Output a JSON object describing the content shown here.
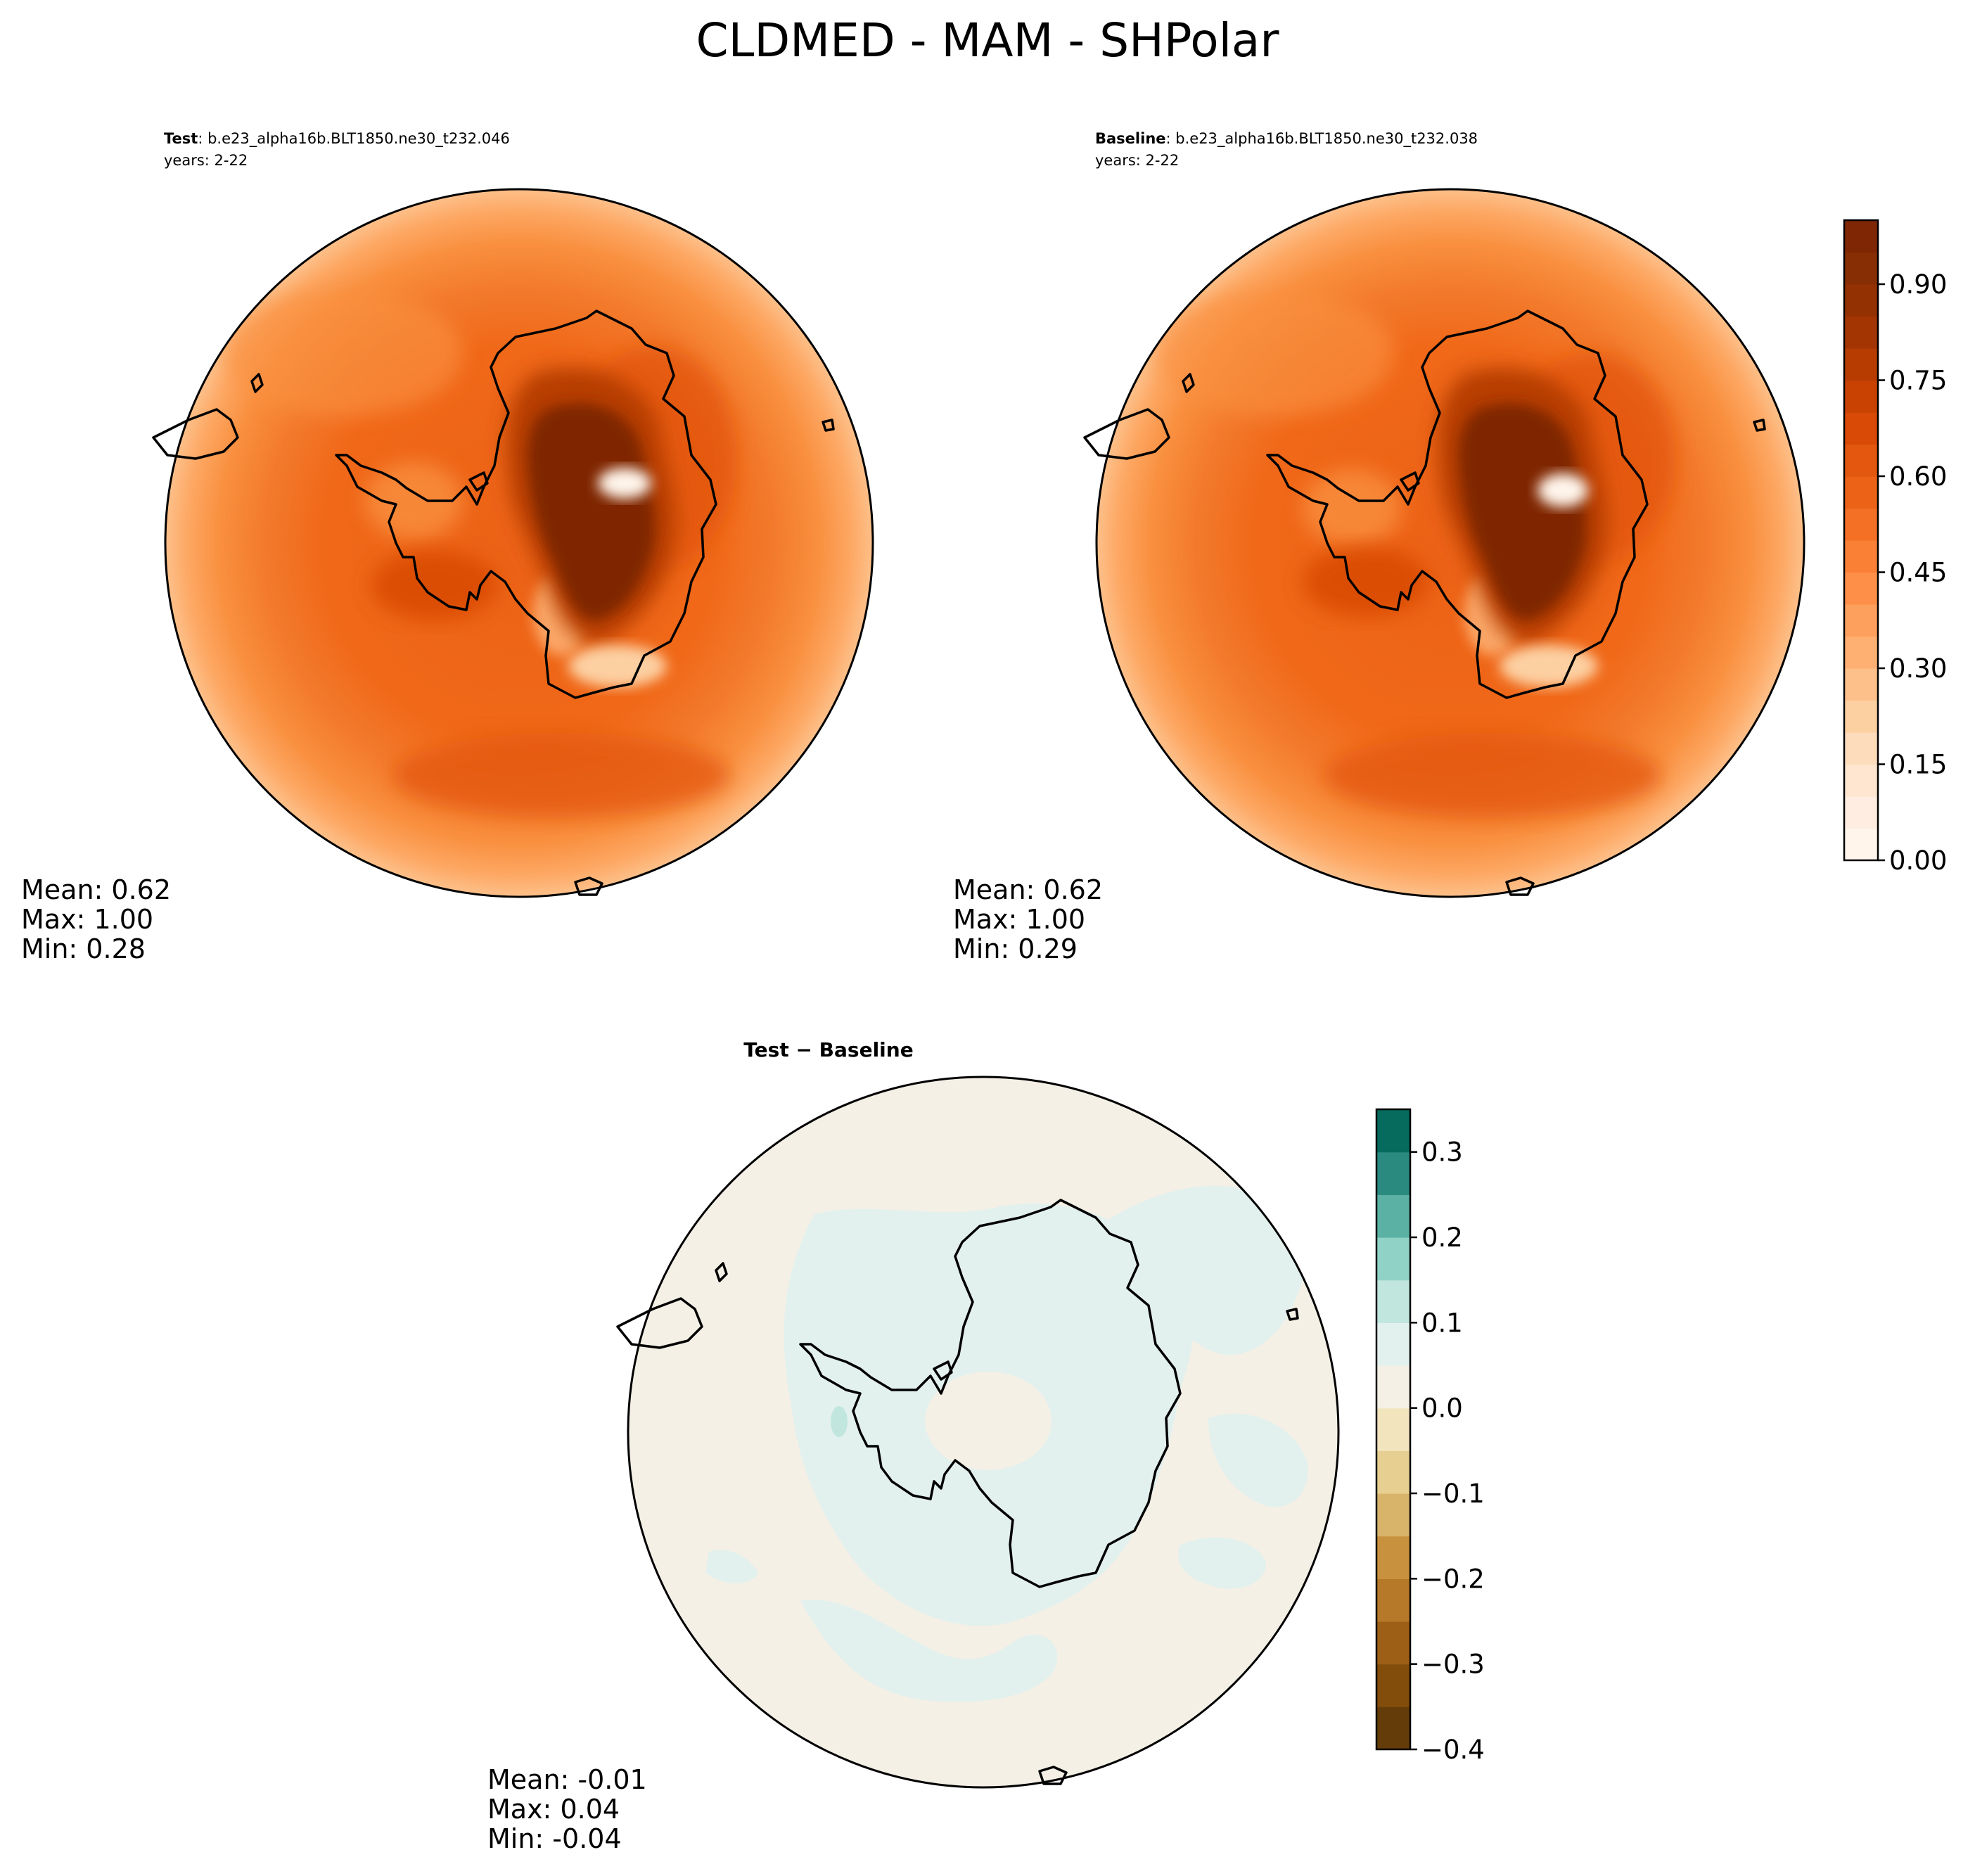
{
  "figure": {
    "title": "CLDMED - MAM - SHPolar"
  },
  "panels": {
    "test": {
      "label": "Test",
      "case": ": b.e23_alpha16b.BLT1850.ne30_t232.046",
      "years": "years: 2-22",
      "stats": {
        "mean": "Mean:  0.62",
        "max": "Max:  1.00",
        "min": "Min:  0.28"
      }
    },
    "baseline": {
      "label": "Baseline",
      "case": ": b.e23_alpha16b.BLT1850.ne30_t232.038",
      "years": "years: 2-22",
      "stats": {
        "mean": "Mean:  0.62",
        "max": "Max:  1.00",
        "min": "Min:  0.29"
      }
    },
    "diff": {
      "label": "Test − Baseline",
      "stats": {
        "mean": "Mean: -0.01",
        "max": "Max:  0.04",
        "min": "Min: -0.04"
      }
    }
  },
  "chart_data": [
    {
      "type": "heatmap",
      "panel": "test",
      "projection": "south-polar-stereographic",
      "summary": {
        "mean": 0.62,
        "max": 1.0,
        "min": 0.28
      },
      "colormap": "Oranges",
      "range": [
        0.0,
        1.0
      ]
    },
    {
      "type": "heatmap",
      "panel": "baseline",
      "projection": "south-polar-stereographic",
      "summary": {
        "mean": 0.62,
        "max": 1.0,
        "min": 0.29
      },
      "colormap": "Oranges",
      "range": [
        0.0,
        1.0
      ],
      "colorbar": {
        "ticks": [
          "0.00",
          "0.15",
          "0.30",
          "0.45",
          "0.60",
          "0.75",
          "0.90"
        ],
        "tick_values": [
          0.0,
          0.15,
          0.3,
          0.45,
          0.6,
          0.75,
          0.9
        ],
        "levels": 20,
        "colors": [
          "#fff5eb",
          "#feede0",
          "#fee6d0",
          "#fddcbc",
          "#fdd0a2",
          "#fdc08a",
          "#fdb072",
          "#fda05d",
          "#fd8f48",
          "#f98035",
          "#f37025",
          "#ec6216",
          "#e3570e",
          "#d84a06",
          "#c94202",
          "#b63c02",
          "#a33503",
          "#943103",
          "#872e04",
          "#7f2704"
        ]
      }
    },
    {
      "type": "heatmap",
      "panel": "diff",
      "projection": "south-polar-stereographic",
      "summary": {
        "mean": -0.01,
        "max": 0.04,
        "min": -0.04
      },
      "colormap": "BrBG",
      "range": [
        -0.4,
        0.35
      ],
      "colorbar": {
        "ticks": [
          "−0.4",
          "−0.3",
          "−0.2",
          "−0.1",
          "0.0",
          "0.1",
          "0.2",
          "0.3"
        ],
        "tick_values": [
          -0.4,
          -0.3,
          -0.2,
          -0.1,
          0.0,
          0.1,
          0.2,
          0.3
        ],
        "level_edges": [
          -0.4,
          -0.35,
          -0.3,
          -0.25,
          -0.2,
          -0.15,
          -0.1,
          -0.05,
          0.0,
          0.05,
          0.1,
          0.15,
          0.2,
          0.25,
          0.3,
          0.35
        ],
        "colors": [
          "#643c0a",
          "#824c0b",
          "#9d5e16",
          "#b67829",
          "#c8913e",
          "#d8b36a",
          "#e6cf90",
          "#f2e4bc",
          "#f4f0e6",
          "#e3f1ee",
          "#c0e6de",
          "#90d3c6",
          "#5ab1a4",
          "#2a8a80",
          "#066a5c"
        ]
      }
    }
  ]
}
